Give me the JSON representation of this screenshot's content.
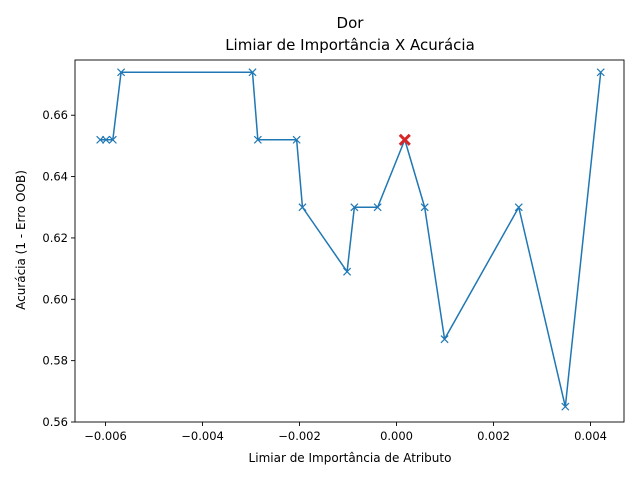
{
  "chart_data": {
    "type": "line",
    "title": "Dor",
    "subtitle": "Limiar de Importância X Acurácia",
    "xlabel": "Limiar de Importância de Atributo",
    "ylabel": "Acurácia (1 - Erro OOB)",
    "xlim": [
      -0.00663,
      0.00469
    ],
    "ylim": [
      0.56,
      0.678
    ],
    "grid": false,
    "x_ticks": [
      {
        "value": -0.006,
        "label": "−0.006"
      },
      {
        "value": -0.004,
        "label": "−0.004"
      },
      {
        "value": -0.002,
        "label": "−0.002"
      },
      {
        "value": 0.0,
        "label": "0.000"
      },
      {
        "value": 0.002,
        "label": "0.002"
      },
      {
        "value": 0.004,
        "label": "0.004"
      }
    ],
    "y_ticks": [
      {
        "value": 0.56,
        "label": "0.56"
      },
      {
        "value": 0.58,
        "label": "0.58"
      },
      {
        "value": 0.6,
        "label": "0.60"
      },
      {
        "value": 0.62,
        "label": "0.62"
      },
      {
        "value": 0.64,
        "label": "0.64"
      },
      {
        "value": 0.66,
        "label": "0.66"
      }
    ],
    "series": [
      {
        "color": "#1f77b4",
        "marker": "x",
        "x": [
          -0.00611,
          -0.00599,
          -0.00585,
          -0.00568,
          -0.00297,
          -0.00286,
          -0.00206,
          -0.00194,
          -0.00102,
          -0.00087,
          -0.00039,
          0.00017,
          0.00058,
          0.00099,
          0.00252,
          0.00348,
          0.00421
        ],
        "y": [
          0.652,
          0.652,
          0.652,
          0.674,
          0.674,
          0.652,
          0.652,
          0.63,
          0.609,
          0.63,
          0.63,
          0.652,
          0.63,
          0.587,
          0.63,
          0.565,
          0.674
        ]
      }
    ],
    "highlight": {
      "color": "#d62728",
      "marker": "x",
      "x": 0.00017,
      "y": 0.652
    }
  }
}
